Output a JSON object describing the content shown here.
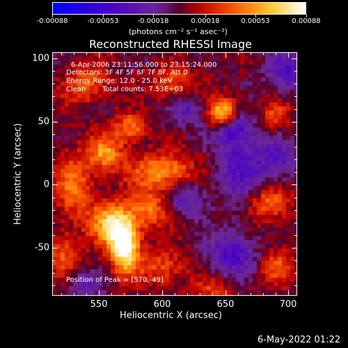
{
  "chart_data": {
    "type": "heatmap",
    "title": "Reconstructed RHESSI Image",
    "xlabel": "Heliocentric X (arcsec)",
    "ylabel": "Heliocentric Y (arcsec)",
    "xlim": [
      513,
      707
    ],
    "ylim": [
      -88,
      105
    ],
    "x_ticks": [
      550,
      600,
      650,
      700
    ],
    "y_ticks": [
      -50,
      0,
      50,
      100
    ],
    "grid": false,
    "colormap": "rhessi-3",
    "colorbar": {
      "range": [
        -0.00088,
        0.00088
      ],
      "tick_labels": [
        "-0.00088",
        "-0.00053",
        "-0.00018",
        "0.00018",
        "0.00053",
        "0.00088"
      ],
      "units_label": "(photons cm⁻² s⁻¹ asec⁻²)"
    },
    "annotations": {
      "time_range": "6-Apr-2006 23:11:56.000 to 23:15:24.000",
      "detectors": "Detectors: 3F 4F 5F 6F 7F 8F, Att 0",
      "energy": "Energy Range: 12.0 - 25.0 keV",
      "method": "Clean",
      "total_counts": "Total counts: 7.53E+03",
      "peak": "Position of Peak = [570,-49]"
    },
    "peak_position": [
      570,
      -49
    ],
    "sources": [
      {
        "x": 570,
        "y": -49,
        "intensity": 1.0,
        "sx": 8,
        "sy": 14
      },
      {
        "x": 560,
        "y": -30,
        "intensity": 0.7,
        "sx": 12,
        "sy": 12
      },
      {
        "x": 590,
        "y": -20,
        "intensity": 0.45,
        "sx": 10,
        "sy": 10
      },
      {
        "x": 648,
        "y": 56,
        "intensity": 0.85,
        "sx": 8,
        "sy": 8
      },
      {
        "x": 600,
        "y": 10,
        "intensity": 0.55,
        "sx": 18,
        "sy": 10
      },
      {
        "x": 555,
        "y": 25,
        "intensity": 0.55,
        "sx": 10,
        "sy": 10
      },
      {
        "x": 575,
        "y": 45,
        "intensity": 0.5,
        "sx": 8,
        "sy": 8
      },
      {
        "x": 530,
        "y": 0,
        "intensity": 0.45,
        "sx": 10,
        "sy": 18
      },
      {
        "x": 540,
        "y": 80,
        "intensity": 0.4,
        "sx": 12,
        "sy": 10
      },
      {
        "x": 610,
        "y": 80,
        "intensity": 0.35,
        "sx": 12,
        "sy": 10
      },
      {
        "x": 685,
        "y": -15,
        "intensity": 0.4,
        "sx": 12,
        "sy": 10
      },
      {
        "x": 690,
        "y": 55,
        "intensity": 0.35,
        "sx": 8,
        "sy": 8
      },
      {
        "x": 600,
        "y": -65,
        "intensity": 0.35,
        "sx": 14,
        "sy": 10
      },
      {
        "x": 520,
        "y": -55,
        "intensity": 0.35,
        "sx": 10,
        "sy": 12
      },
      {
        "x": 690,
        "y": -65,
        "intensity": 0.35,
        "sx": 10,
        "sy": 10
      },
      {
        "x": 640,
        "y": -85,
        "intensity": 0.3,
        "sx": 12,
        "sy": 8
      },
      {
        "x": 660,
        "y": 15,
        "intensity": -0.45,
        "sx": 12,
        "sy": 20
      },
      {
        "x": 655,
        "y": 45,
        "intensity": -0.5,
        "sx": 10,
        "sy": 8
      },
      {
        "x": 655,
        "y": -55,
        "intensity": -0.5,
        "sx": 14,
        "sy": 12
      },
      {
        "x": 620,
        "y": -10,
        "intensity": -0.35,
        "sx": 10,
        "sy": 10
      },
      {
        "x": 700,
        "y": 90,
        "intensity": -0.45,
        "sx": 12,
        "sy": 12
      },
      {
        "x": 620,
        "y": 60,
        "intensity": -0.35,
        "sx": 10,
        "sy": 10
      },
      {
        "x": 690,
        "y": 20,
        "intensity": -0.4,
        "sx": 12,
        "sy": 12
      },
      {
        "x": 540,
        "y": -80,
        "intensity": -0.3,
        "sx": 10,
        "sy": 8
      }
    ]
  },
  "footer": {
    "timestamp": "6-May-2022 01:22"
  }
}
